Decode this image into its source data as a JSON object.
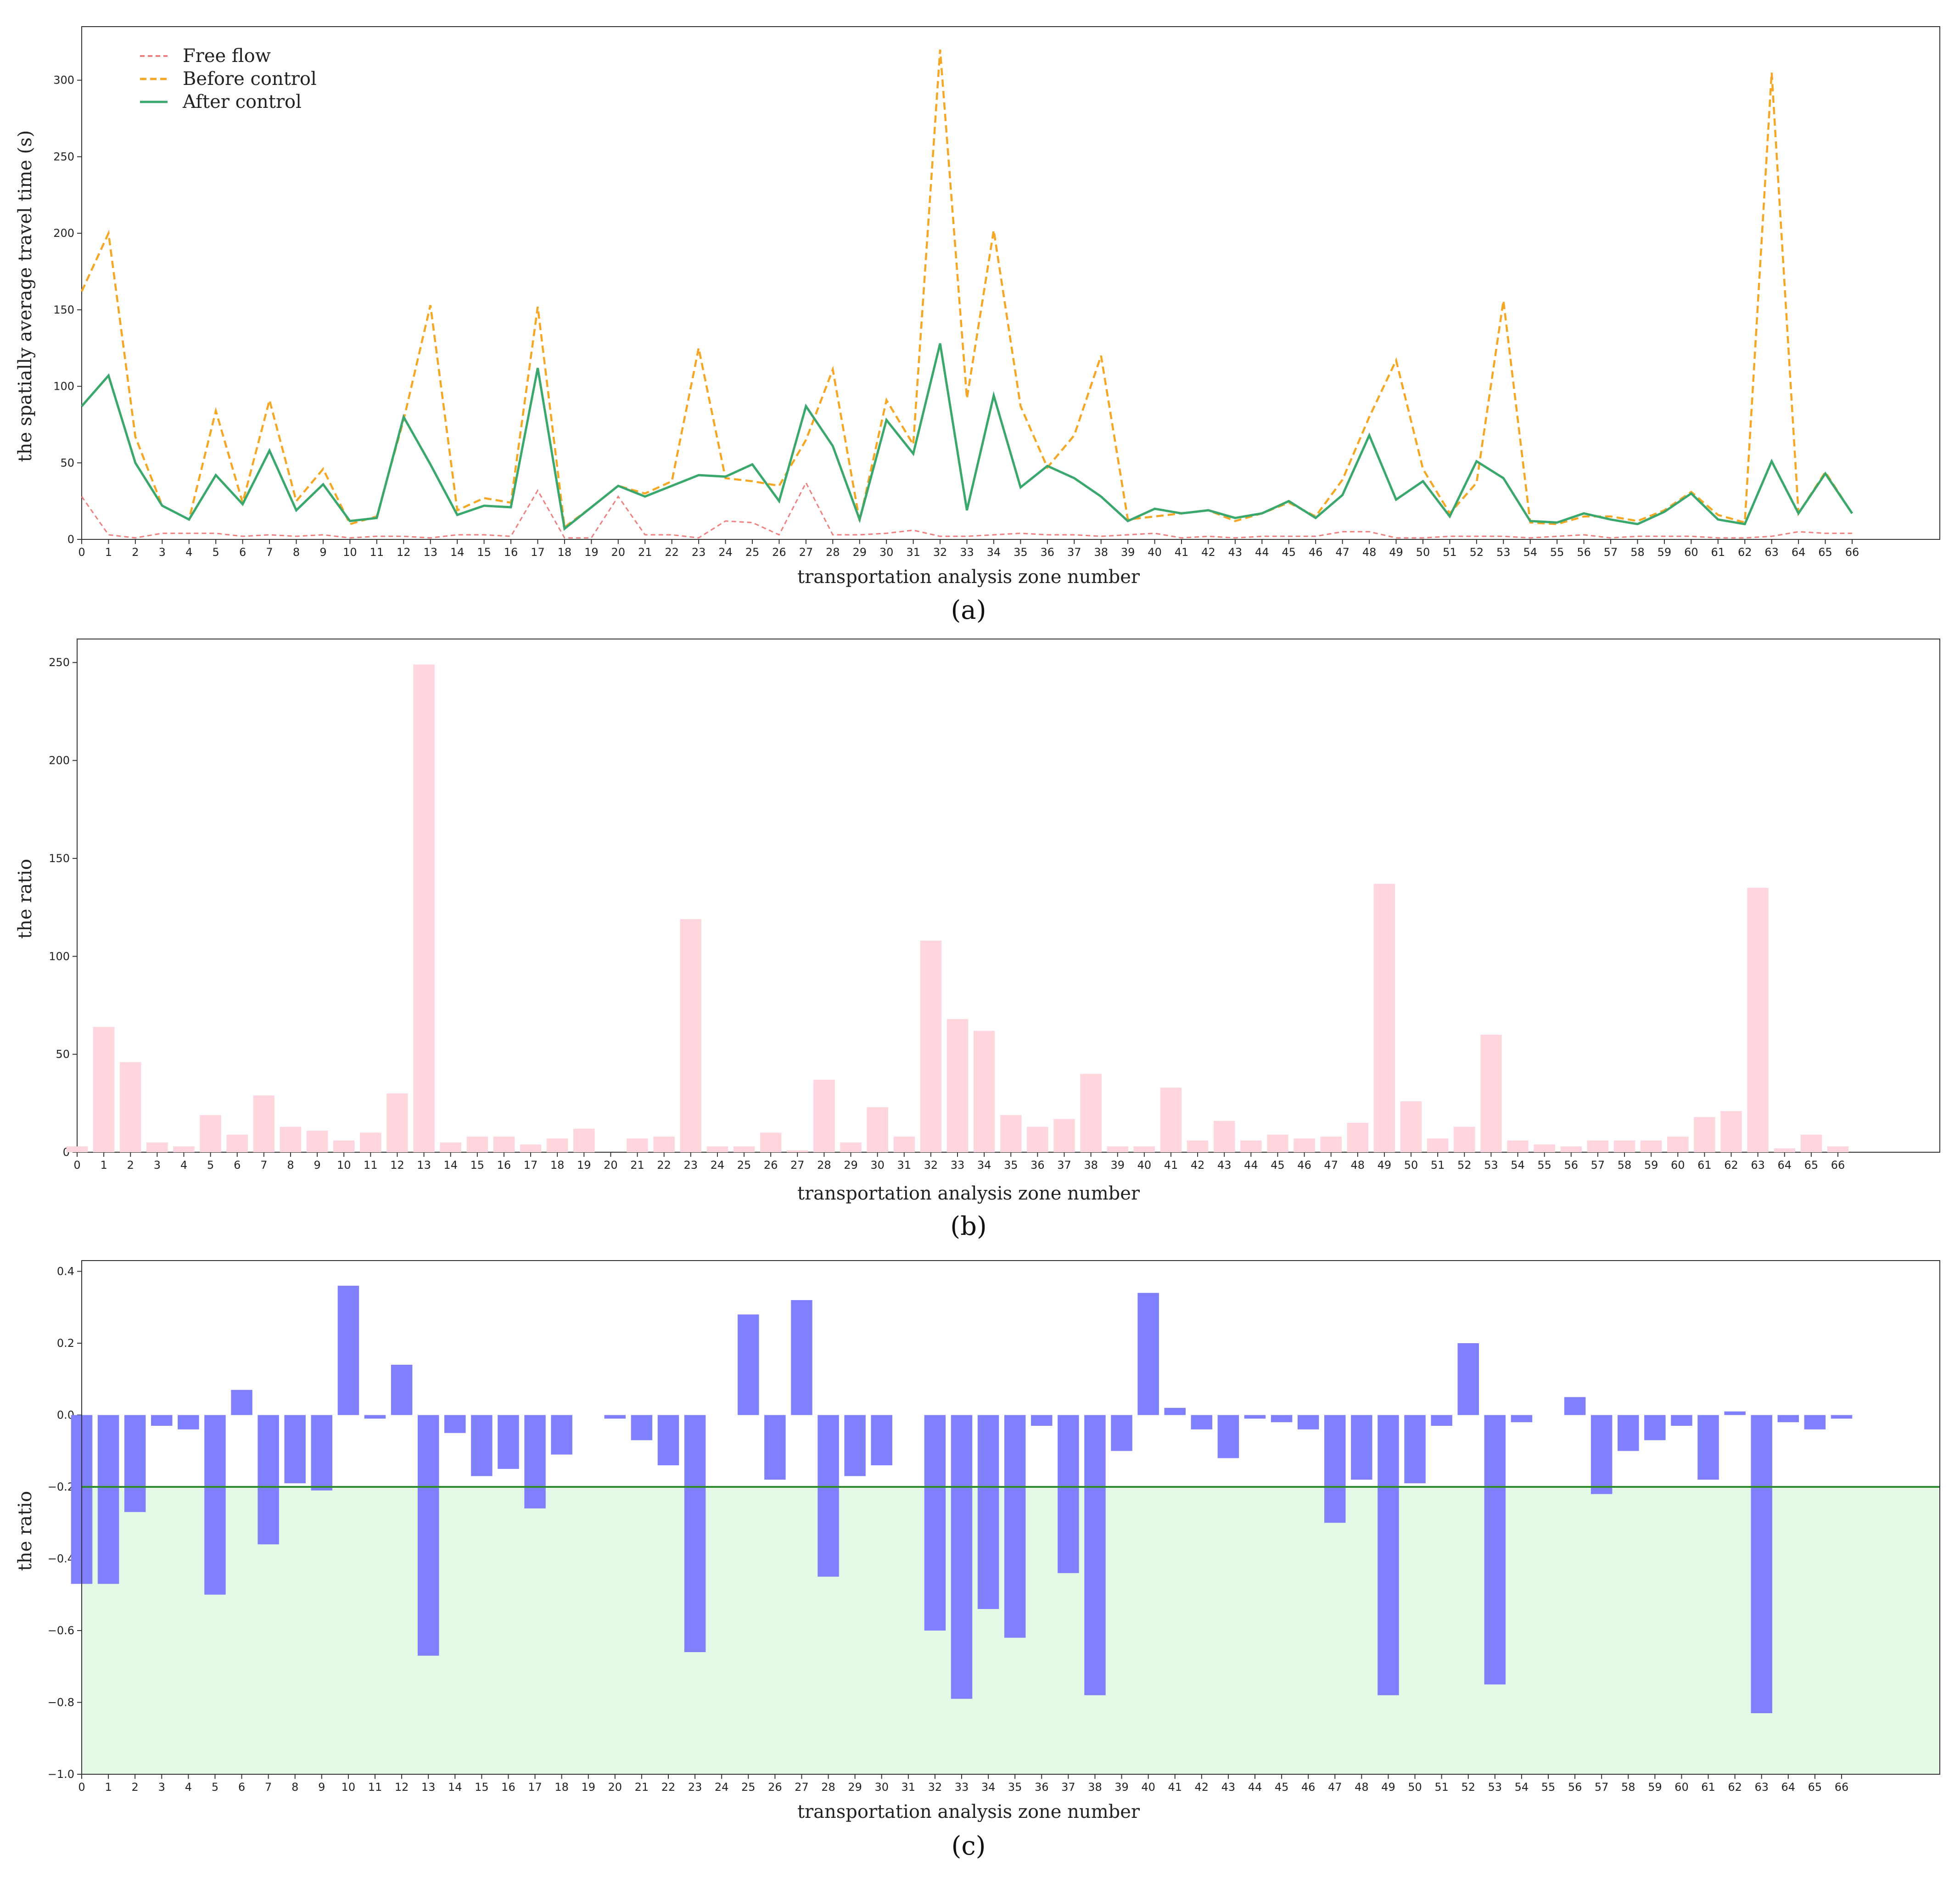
{
  "colors": {
    "free_flow": "#f08080",
    "before_control": "#f5a623",
    "after_control": "#3aa76d",
    "pink_bar": "#ffd6dd",
    "blue_bar": "#8080ff",
    "green_fill": "#e6f9e6",
    "green_line": "#2e8b2e"
  },
  "chart_data": [
    {
      "type": "line",
      "panel_label": "(a)",
      "xlabel": "transportation analysis zone number",
      "ylabel": "the spatially average travel time (s)",
      "x": [
        0,
        1,
        2,
        3,
        4,
        5,
        6,
        7,
        8,
        9,
        10,
        11,
        12,
        13,
        14,
        15,
        16,
        17,
        18,
        19,
        20,
        21,
        22,
        23,
        24,
        25,
        26,
        27,
        28,
        29,
        30,
        31,
        32,
        33,
        34,
        35,
        36,
        37,
        38,
        39,
        40,
        41,
        42,
        43,
        44,
        45,
        46,
        47,
        48,
        49,
        50,
        51,
        52,
        53,
        54,
        55,
        56,
        57,
        58,
        59,
        60,
        61,
        62,
        63,
        64,
        65,
        66
      ],
      "ylim": [
        0,
        335
      ],
      "yticks": [
        0,
        50,
        100,
        150,
        200,
        250,
        300
      ],
      "legend": [
        "Free flow",
        "Before control",
        "After control"
      ],
      "series": [
        {
          "name": "Free flow",
          "style": "dashed",
          "values": [
            28,
            3,
            1,
            4,
            4,
            4,
            2,
            3,
            2,
            3,
            1,
            2,
            2,
            1,
            3,
            3,
            2,
            32,
            1,
            1,
            28,
            3,
            3,
            1,
            12,
            11,
            3,
            37,
            3,
            3,
            4,
            6,
            2,
            2,
            3,
            4,
            3,
            3,
            2,
            3,
            4,
            1,
            2,
            1,
            2,
            2,
            2,
            5,
            5,
            1,
            1,
            2,
            2,
            2,
            1,
            2,
            3,
            1,
            2,
            2,
            2,
            1,
            1,
            2,
            5,
            4,
            4
          ]
        },
        {
          "name": "Before control",
          "style": "dashed",
          "values": [
            162,
            200,
            67,
            22,
            13,
            84,
            24,
            91,
            25,
            46,
            10,
            15,
            78,
            153,
            19,
            27,
            24,
            152,
            8,
            21,
            35,
            30,
            38,
            125,
            40,
            38,
            35,
            65,
            111,
            12,
            91,
            62,
            320,
            92,
            202,
            87,
            47,
            68,
            120,
            13,
            15,
            17,
            19,
            12,
            17,
            24,
            15,
            39,
            80,
            117,
            46,
            17,
            37,
            156,
            11,
            10,
            15,
            15,
            12,
            19,
            31,
            16,
            11,
            305,
            17,
            44,
            17
          ]
        },
        {
          "name": "After control",
          "style": "solid",
          "values": [
            87,
            107,
            50,
            22,
            13,
            42,
            23,
            58,
            19,
            36,
            12,
            14,
            80,
            49,
            16,
            22,
            21,
            112,
            7,
            21,
            35,
            28,
            35,
            42,
            41,
            49,
            25,
            87,
            61,
            13,
            78,
            56,
            128,
            19,
            94,
            34,
            48,
            40,
            28,
            12,
            20,
            17,
            19,
            14,
            17,
            25,
            14,
            29,
            68,
            26,
            38,
            15,
            51,
            40,
            12,
            11,
            17,
            13,
            10,
            18,
            30,
            13,
            10,
            51,
            17,
            43,
            17
          ]
        }
      ]
    },
    {
      "type": "bar",
      "panel_label": "(b)",
      "xlabel": "transportation analysis zone number",
      "ylabel": "the ratio",
      "categories": [
        0,
        1,
        2,
        3,
        4,
        5,
        6,
        7,
        8,
        9,
        10,
        11,
        12,
        13,
        14,
        15,
        16,
        17,
        18,
        19,
        20,
        21,
        22,
        23,
        24,
        25,
        26,
        27,
        28,
        29,
        30,
        31,
        32,
        33,
        34,
        35,
        36,
        37,
        38,
        39,
        40,
        41,
        42,
        43,
        44,
        45,
        46,
        47,
        48,
        49,
        50,
        51,
        52,
        53,
        54,
        55,
        56,
        57,
        58,
        59,
        60,
        61,
        62,
        63,
        64,
        65,
        66
      ],
      "ylim": [
        0,
        262
      ],
      "yticks": [
        0,
        50,
        100,
        150,
        200,
        250
      ],
      "values": [
        3,
        64,
        46,
        5,
        3,
        19,
        9,
        29,
        13,
        11,
        6,
        10,
        30,
        249,
        5,
        8,
        8,
        4,
        7,
        12,
        0,
        7,
        8,
        119,
        3,
        3,
        10,
        1,
        37,
        5,
        23,
        8,
        108,
        68,
        62,
        19,
        13,
        17,
        40,
        3,
        3,
        33,
        6,
        16,
        6,
        9,
        7,
        8,
        15,
        137,
        26,
        7,
        13,
        60,
        6,
        4,
        3,
        6,
        6,
        6,
        8,
        18,
        21,
        135,
        2,
        9,
        3
      ]
    },
    {
      "type": "bar",
      "panel_label": "(c)",
      "xlabel": "transportation analysis zone number",
      "ylabel": "the ratio",
      "categories": [
        0,
        1,
        2,
        3,
        4,
        5,
        6,
        7,
        8,
        9,
        10,
        11,
        12,
        13,
        14,
        15,
        16,
        17,
        18,
        19,
        20,
        21,
        22,
        23,
        24,
        25,
        26,
        27,
        28,
        29,
        30,
        31,
        32,
        33,
        34,
        35,
        36,
        37,
        38,
        39,
        40,
        41,
        42,
        43,
        44,
        45,
        46,
        47,
        48,
        49,
        50,
        51,
        52,
        53,
        54,
        55,
        56,
        57,
        58,
        59,
        60,
        61,
        62,
        63,
        64,
        65,
        66
      ],
      "ylim": [
        -1.0,
        0.43
      ],
      "yticks": [
        -1.0,
        -0.8,
        -0.6,
        -0.4,
        -0.2,
        0.0,
        0.2,
        0.4
      ],
      "ytick_labels": [
        "−1.0",
        "−0.8",
        "−0.6",
        "−0.4",
        "−0.2",
        "0.0",
        "0.2",
        "0.4"
      ],
      "threshold": -0.2,
      "values": [
        -0.47,
        -0.47,
        -0.27,
        -0.03,
        -0.04,
        -0.5,
        0.07,
        -0.36,
        -0.19,
        -0.21,
        0.36,
        -0.01,
        0.14,
        -0.67,
        -0.05,
        -0.17,
        -0.15,
        -0.26,
        -0.11,
        0,
        -0.01,
        -0.07,
        -0.14,
        -0.66,
        0,
        0.28,
        -0.18,
        0.32,
        -0.45,
        -0.17,
        -0.14,
        0,
        -0.6,
        -0.79,
        -0.54,
        -0.62,
        -0.03,
        -0.44,
        -0.78,
        -0.1,
        0.34,
        0.02,
        -0.04,
        -0.12,
        -0.01,
        -0.02,
        -0.04,
        -0.3,
        -0.18,
        -0.78,
        -0.19,
        -0.03,
        0.2,
        -0.75,
        -0.02,
        0,
        0.05,
        -0.22,
        -0.1,
        -0.07,
        -0.03,
        -0.18,
        0.01,
        -0.83,
        -0.02,
        -0.04,
        -0.01
      ]
    }
  ]
}
